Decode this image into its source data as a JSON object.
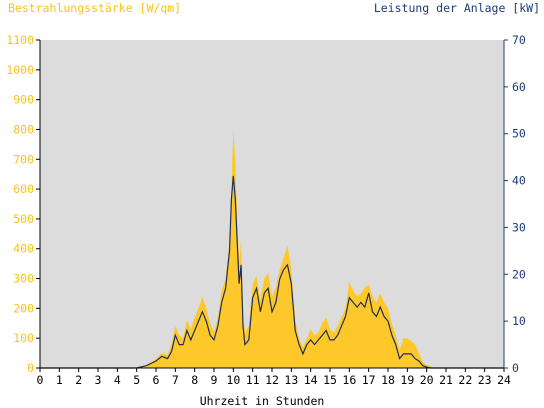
{
  "chart_data": {
    "type": "area",
    "left_axis_label": "Bestrahlungsstärke [W/qm]",
    "right_axis_label": "Leistung der Anlage [kW]",
    "xlabel": "Uhrzeit in Stunden",
    "xlim": [
      0,
      24
    ],
    "ylim_left": [
      0,
      1100
    ],
    "ylim_right": [
      0,
      70
    ],
    "x_ticks": [
      "0",
      "1",
      "2",
      "3",
      "4",
      "5",
      "6",
      "7",
      "8",
      "9",
      "10",
      "11",
      "12",
      "13",
      "14",
      "15",
      "16",
      "17",
      "18",
      "19",
      "20",
      "21",
      "22",
      "23",
      "24"
    ],
    "y_ticks_left": [
      "0",
      "100",
      "200",
      "300",
      "400",
      "500",
      "600",
      "700",
      "800",
      "900",
      "1000",
      "1100"
    ],
    "y_ticks_right": [
      "0",
      "10",
      "20",
      "30",
      "40",
      "50",
      "60",
      "70"
    ],
    "grid": false,
    "colors": {
      "irradiance_fill": "#ffc82a",
      "power_line": "#1c2e5c",
      "axis_right": "#1c3b78",
      "axis_left": "#f5c518",
      "plot_bg": "#dcdcdc"
    },
    "series": [
      {
        "axis": "left",
        "x": [
          0,
          5,
          5.5,
          6,
          6.3,
          6.6,
          6.8,
          7,
          7.2,
          7.4,
          7.6,
          7.8,
          8,
          8.2,
          8.4,
          8.6,
          8.8,
          9,
          9.2,
          9.4,
          9.6,
          9.8,
          9.9,
          10,
          10.1,
          10.2,
          10.3,
          10.4,
          10.5,
          10.6,
          10.8,
          11,
          11.2,
          11.4,
          11.6,
          11.8,
          12,
          12.2,
          12.4,
          12.6,
          12.8,
          13,
          13.2,
          13.4,
          13.6,
          13.8,
          14,
          14.2,
          14.4,
          14.6,
          14.8,
          15,
          15.2,
          15.4,
          15.6,
          15.8,
          16,
          16.2,
          16.4,
          16.6,
          16.8,
          17,
          17.2,
          17.4,
          17.6,
          17.8,
          18,
          18.2,
          18.4,
          18.6,
          18.8,
          19,
          19.2,
          19.4,
          19.6,
          19.8,
          20,
          20.2,
          20.5,
          24
        ],
        "values": [
          0,
          0,
          10,
          30,
          50,
          45,
          80,
          140,
          110,
          100,
          160,
          130,
          170,
          200,
          240,
          200,
          150,
          120,
          170,
          260,
          300,
          420,
          600,
          800,
          700,
          500,
          350,
          430,
          180,
          120,
          140,
          280,
          310,
          230,
          300,
          320,
          240,
          270,
          330,
          370,
          410,
          330,
          160,
          100,
          70,
          100,
          130,
          110,
          120,
          150,
          170,
          130,
          120,
          140,
          170,
          200,
          290,
          260,
          240,
          250,
          270,
          280,
          240,
          220,
          250,
          220,
          200,
          150,
          110,
          60,
          100,
          100,
          90,
          80,
          50,
          20,
          10,
          5,
          0,
          0
        ]
      },
      {
        "axis": "right",
        "x": [
          0,
          5,
          5.5,
          6,
          6.3,
          6.6,
          6.8,
          7,
          7.2,
          7.4,
          7.6,
          7.8,
          8,
          8.2,
          8.4,
          8.6,
          8.8,
          9,
          9.2,
          9.4,
          9.6,
          9.8,
          9.9,
          10,
          10.1,
          10.2,
          10.3,
          10.4,
          10.5,
          10.6,
          10.8,
          11,
          11.2,
          11.4,
          11.6,
          11.8,
          12,
          12.2,
          12.4,
          12.6,
          12.8,
          13,
          13.2,
          13.4,
          13.6,
          13.8,
          14,
          14.2,
          14.4,
          14.6,
          14.8,
          15,
          15.2,
          15.4,
          15.6,
          15.8,
          16,
          16.2,
          16.4,
          16.6,
          16.8,
          17,
          17.2,
          17.4,
          17.6,
          17.8,
          18,
          18.2,
          18.4,
          18.6,
          18.8,
          19,
          19.2,
          19.4,
          19.6,
          19.8,
          20,
          20.2,
          20.5,
          24
        ],
        "values": [
          0,
          0,
          0.5,
          1.5,
          2.5,
          2,
          3.5,
          7,
          5,
          5,
          8,
          6,
          8,
          10,
          12,
          10,
          7,
          6,
          9,
          14,
          17,
          25,
          36,
          41,
          36,
          27,
          18,
          22,
          9,
          5,
          6,
          15,
          17,
          12,
          16,
          17,
          12,
          14,
          19,
          21,
          22,
          18,
          8,
          5,
          3,
          5,
          6,
          5,
          6,
          7,
          8,
          6,
          6,
          7,
          9,
          11,
          15,
          14,
          13,
          14,
          13,
          16,
          12,
          11,
          13,
          11,
          10,
          7,
          5,
          2,
          3,
          3,
          3,
          2,
          1.5,
          0.5,
          0.2,
          0,
          0,
          0
        ]
      }
    ]
  }
}
